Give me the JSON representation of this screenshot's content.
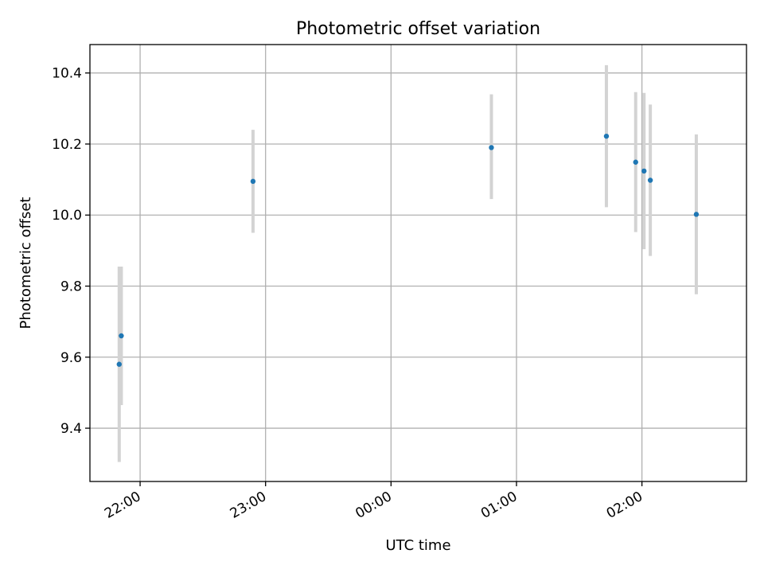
{
  "chart_data": {
    "type": "scatter",
    "title": "Photometric offset variation",
    "xlabel": "UTC time",
    "ylabel": "Photometric offset",
    "x_axis": {
      "kind": "time",
      "range": [
        "21:36",
        "02:50"
      ],
      "ticks": [
        "22:00",
        "23:00",
        "00:00",
        "01:00",
        "02:00"
      ]
    },
    "y_axis": {
      "range": [
        9.25,
        10.48
      ],
      "ticks": [
        "9.4",
        "9.6",
        "9.8",
        "10.0",
        "10.2",
        "10.4"
      ]
    },
    "grid": true,
    "colors": {
      "points": "#1f77b4",
      "errorbars": "#d3d3d3",
      "grid": "#b0b0b0",
      "frame": "#000000"
    },
    "points": [
      {
        "time": "21:50",
        "y": 9.58,
        "err_low": 0.275,
        "err_high": 0.275
      },
      {
        "time": "21:51",
        "y": 9.66,
        "err_low": 0.195,
        "err_high": 0.195
      },
      {
        "time": "22:54",
        "y": 10.095,
        "err_low": 0.145,
        "err_high": 0.145
      },
      {
        "time": "00:48",
        "y": 10.19,
        "err_low": 0.145,
        "err_high": 0.15
      },
      {
        "time": "01:43",
        "y": 10.222,
        "err_low": 0.2,
        "err_high": 0.2
      },
      {
        "time": "01:57",
        "y": 10.149,
        "err_low": 0.197,
        "err_high": 0.197
      },
      {
        "time": "02:01",
        "y": 10.124,
        "err_low": 0.22,
        "err_high": 0.22
      },
      {
        "time": "02:04",
        "y": 10.098,
        "err_low": 0.213,
        "err_high": 0.213
      },
      {
        "time": "02:26",
        "y": 10.002,
        "err_low": 0.225,
        "err_high": 0.225
      }
    ]
  }
}
